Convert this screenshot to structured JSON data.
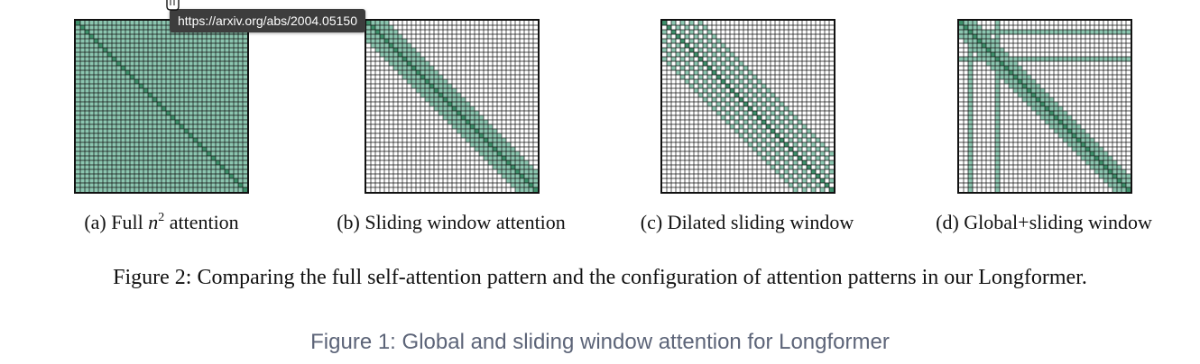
{
  "tooltip": {
    "url": "https://arxiv.org/abs/2004.05150"
  },
  "colors": {
    "light": "#8cc6b0",
    "dark": "#3d8f6a",
    "grid_line": "#111111",
    "background": "#ffffff"
  },
  "grid": {
    "cells": 38,
    "window_half_width": 4,
    "global_tokens": [
      2,
      8
    ]
  },
  "panels": [
    {
      "id": "full",
      "label_prefix": "(a) Full ",
      "math": "n",
      "sup": "2",
      "label_suffix": " attention"
    },
    {
      "id": "sliding",
      "label": "(b) Sliding window attention"
    },
    {
      "id": "dilated",
      "label": "(c) Dilated sliding window"
    },
    {
      "id": "global",
      "label": "(d) Global+sliding window"
    }
  ],
  "figure_caption": "Figure 2: Comparing the full self-attention pattern and the configuration of attention patterns in our Longformer.",
  "page_caption": "Figure 1: Global and sliding window attention for Longformer",
  "icons": {
    "cursor": "hand-pointer-icon"
  }
}
